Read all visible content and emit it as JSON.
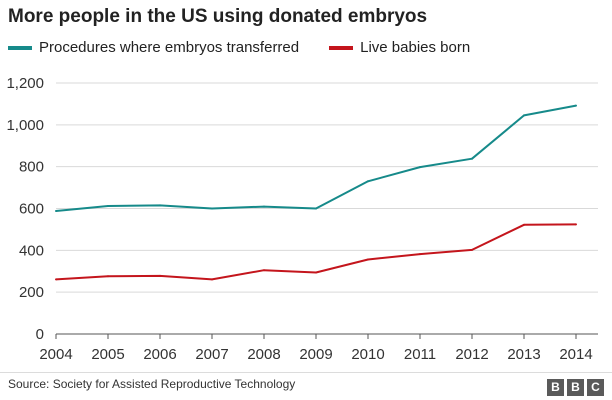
{
  "title": "More people in the US using donated embryos",
  "source": "Source: Society for Assisted Reproductive Technology",
  "logo": [
    "B",
    "B",
    "C"
  ],
  "chart_data": {
    "type": "line",
    "title": "More people in the US using donated embryos",
    "xlabel": "",
    "ylabel": "",
    "x": [
      2004,
      2005,
      2006,
      2007,
      2008,
      2009,
      2010,
      2011,
      2012,
      2013,
      2014
    ],
    "xticks": [
      "2004",
      "2005",
      "2006",
      "2007",
      "2008",
      "2009",
      "2010",
      "2011",
      "2012",
      "2013",
      "2014"
    ],
    "ylim": [
      0,
      1200
    ],
    "yticks": [
      "0",
      "200",
      "400",
      "600",
      "800",
      "1,000",
      "1,200"
    ],
    "ytick_values": [
      0,
      200,
      400,
      600,
      800,
      1000,
      1200
    ],
    "grid": "horizontal",
    "legend_position": "top-left",
    "series": [
      {
        "name": "Procedures where embryos transferred",
        "color": "#168a8a",
        "values": [
          588,
          612,
          615,
          600,
          609,
          600,
          730,
          798,
          838,
          1045,
          1092
        ]
      },
      {
        "name": "Live babies born",
        "color": "#c4151c",
        "values": [
          261,
          276,
          278,
          261,
          305,
          294,
          356,
          382,
          402,
          522,
          524
        ]
      }
    ]
  }
}
